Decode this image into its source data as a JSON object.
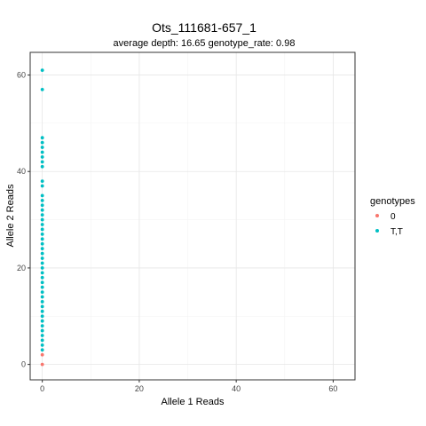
{
  "chart_data": {
    "type": "scatter",
    "title": "Ots_111681-657_1",
    "subtitle": "average depth:  16.65  genotype_rate:  0.98",
    "xlabel": "Allele 1 Reads",
    "ylabel": "Allele 2 Reads",
    "xlim": [
      -2.5,
      64.5
    ],
    "ylim": [
      -3.2,
      64.7
    ],
    "x_ticks": [
      0,
      20,
      40,
      60
    ],
    "y_ticks": [
      0,
      20,
      40,
      60
    ],
    "grid": true,
    "legend": {
      "title": "genotypes",
      "position": "right"
    },
    "series": [
      {
        "name": "0",
        "color": "#F8766D",
        "points": [
          [
            0,
            0
          ],
          [
            0,
            2
          ]
        ]
      },
      {
        "name": "T,T",
        "color": "#00BFC4",
        "points": [
          [
            0,
            3
          ],
          [
            0,
            4
          ],
          [
            0,
            5
          ],
          [
            0,
            6
          ],
          [
            0,
            7
          ],
          [
            0,
            8
          ],
          [
            0,
            9
          ],
          [
            0,
            10
          ],
          [
            0,
            11
          ],
          [
            0,
            12
          ],
          [
            0,
            13
          ],
          [
            0,
            14
          ],
          [
            0,
            15
          ],
          [
            0,
            16
          ],
          [
            0,
            17
          ],
          [
            0,
            18
          ],
          [
            0,
            19
          ],
          [
            0,
            20
          ],
          [
            0,
            21
          ],
          [
            0,
            22
          ],
          [
            0,
            23
          ],
          [
            0,
            24
          ],
          [
            0,
            25
          ],
          [
            0,
            26
          ],
          [
            0,
            27
          ],
          [
            0,
            28
          ],
          [
            0,
            29
          ],
          [
            0,
            30
          ],
          [
            0,
            31
          ],
          [
            0,
            32
          ],
          [
            0,
            33
          ],
          [
            0,
            34
          ],
          [
            0,
            35
          ],
          [
            0,
            37
          ],
          [
            0,
            38
          ],
          [
            0,
            41
          ],
          [
            0,
            42
          ],
          [
            0,
            43
          ],
          [
            0,
            44
          ],
          [
            0,
            45
          ],
          [
            0,
            46
          ],
          [
            0,
            47
          ],
          [
            0,
            57
          ],
          [
            0,
            61
          ]
        ]
      }
    ]
  }
}
